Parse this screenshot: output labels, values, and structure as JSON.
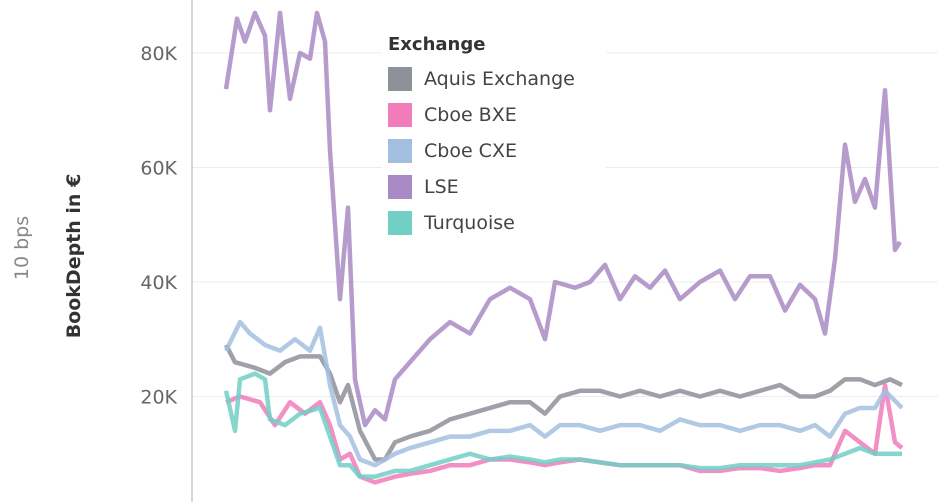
{
  "chart_data": {
    "type": "line",
    "title": "",
    "outer_label": "10 bps",
    "ylabel": "BookDepth in €",
    "xlabel": "",
    "ylim": [
      0,
      88
    ],
    "xlim": [
      0,
      67.6
    ],
    "y_unit": "thousands of €",
    "y_ticks": [
      {
        "value": 20,
        "label": "20K"
      },
      {
        "value": 40,
        "label": "40K"
      },
      {
        "value": 60,
        "label": "60K"
      },
      {
        "value": 80,
        "label": "80K"
      }
    ],
    "grid": true,
    "legend": {
      "title": "Exchange",
      "placement": "top-center"
    },
    "series": [
      {
        "name": "Aquis Exchange",
        "color": "#8f9199",
        "x": [
          0,
          0.9,
          2.9,
          4.4,
          5.9,
          7.4,
          9.4,
          10.4,
          11.4,
          12.2,
          13.4,
          14.9,
          15.9,
          16.9,
          18.4,
          20.4,
          22.4,
          24.4,
          26.4,
          28.4,
          30.4,
          31.9,
          33.4,
          35.4,
          37.4,
          39.4,
          41.4,
          43.4,
          45.4,
          47.4,
          49.4,
          51.4,
          53.4,
          55.4,
          57.4,
          58.9,
          60.4,
          61.9,
          63.4,
          64.9,
          66.4,
          67.6
        ],
        "y": [
          29,
          26,
          25,
          24,
          26,
          27,
          27,
          24,
          19,
          22,
          14,
          9,
          9,
          12,
          13,
          14,
          16,
          17,
          18,
          19,
          19,
          17,
          20,
          21,
          21,
          20,
          21,
          20,
          21,
          20,
          21,
          20,
          21,
          22,
          20,
          20,
          21,
          23,
          23,
          22,
          23,
          22
        ]
      },
      {
        "name": "Cboe BXE",
        "color": "#f07cbc",
        "x": [
          0,
          1.4,
          3.4,
          4.9,
          6.4,
          7.9,
          9.4,
          10.4,
          11.4,
          12.4,
          13.4,
          14.9,
          16.9,
          18.4,
          20.4,
          22.4,
          24.4,
          26.4,
          28.4,
          30.4,
          31.9,
          33.4,
          35.4,
          37.4,
          39.4,
          41.4,
          43.4,
          45.4,
          47.4,
          49.4,
          51.4,
          53.4,
          55.4,
          57.4,
          58.9,
          60.4,
          61.9,
          63.4,
          64.9,
          65.9,
          66.9,
          67.6
        ],
        "y": [
          19,
          20,
          19,
          15,
          19,
          17,
          19,
          15,
          9,
          10,
          6,
          5,
          6,
          6.5,
          7,
          8,
          8,
          9,
          9,
          8.5,
          8,
          8.5,
          9,
          8.5,
          8,
          8,
          8,
          8,
          7,
          7,
          7.5,
          7.5,
          7,
          7.5,
          8,
          8,
          14,
          12,
          10,
          22,
          12,
          11
        ]
      },
      {
        "name": "Cboe CXE",
        "color": "#a3bfe0",
        "x": [
          0,
          1.4,
          2.4,
          3.9,
          5.4,
          6.9,
          8.4,
          9.4,
          10.4,
          11.4,
          12.4,
          13.4,
          14.9,
          16.9,
          18.4,
          20.4,
          22.4,
          24.4,
          26.4,
          28.4,
          30.4,
          31.9,
          33.4,
          35.4,
          37.4,
          39.4,
          41.4,
          43.4,
          45.4,
          47.4,
          49.4,
          51.4,
          53.4,
          55.4,
          57.4,
          58.9,
          60.4,
          61.9,
          63.4,
          64.9,
          65.9,
          67.6
        ],
        "y": [
          28,
          33,
          31,
          29,
          28,
          30,
          28,
          32,
          22,
          15,
          13,
          9,
          8,
          10,
          11,
          12,
          13,
          13,
          14,
          14,
          15,
          13,
          15,
          15,
          14,
          15,
          15,
          14,
          16,
          15,
          15,
          14,
          15,
          15,
          14,
          15,
          13,
          17,
          18,
          18,
          21,
          18
        ]
      },
      {
        "name": "LSE",
        "color": "#a98bc4",
        "x": [
          0,
          1.1,
          1.9,
          2.9,
          3.9,
          4.4,
          5.4,
          6.4,
          7.4,
          8.4,
          9.1,
          9.9,
          10.4,
          11.4,
          12.2,
          12.9,
          13.9,
          14.9,
          15.9,
          16.9,
          18.4,
          20.4,
          22.4,
          24.4,
          26.4,
          28.4,
          30.4,
          31.9,
          32.9,
          34.9,
          36.4,
          37.9,
          39.4,
          40.9,
          42.4,
          43.9,
          45.4,
          47.4,
          49.4,
          50.9,
          52.4,
          54.4,
          55.9,
          57.4,
          58.9,
          59.9,
          60.9,
          61.9,
          62.9,
          63.9,
          64.9,
          65.9,
          66.9,
          67.4
        ],
        "y": [
          73.7,
          86,
          82,
          87,
          83,
          70,
          87,
          72,
          80,
          79,
          87,
          82,
          63,
          37,
          53,
          23,
          15,
          17.6,
          16,
          23,
          26,
          30,
          33,
          31,
          37,
          39,
          37,
          30,
          40,
          39,
          40,
          43,
          37,
          41,
          39,
          42,
          37,
          40,
          42,
          37,
          41,
          41,
          35,
          39.5,
          37,
          31,
          44,
          64,
          54,
          58,
          53,
          73.5,
          45.6,
          47
        ]
      },
      {
        "name": "Turquoise",
        "color": "#72cfc5",
        "x": [
          0,
          0.9,
          1.4,
          2.9,
          3.9,
          4.4,
          5.9,
          7.4,
          9.4,
          10.4,
          11.4,
          12.4,
          13.4,
          14.9,
          16.9,
          18.4,
          20.4,
          22.4,
          24.4,
          26.4,
          28.4,
          30.4,
          31.9,
          33.4,
          35.4,
          37.4,
          39.4,
          41.4,
          43.4,
          45.4,
          47.4,
          49.4,
          51.4,
          53.4,
          55.4,
          57.4,
          58.9,
          60.4,
          61.9,
          63.4,
          64.9,
          66.4,
          67.6
        ],
        "y": [
          21,
          14,
          23,
          24,
          23,
          16,
          15,
          17,
          18,
          13,
          8,
          8,
          6,
          6,
          7,
          7,
          8,
          9,
          10,
          9,
          9.5,
          9,
          8.5,
          9,
          9,
          8.5,
          8,
          8,
          8,
          8,
          7.5,
          7.5,
          8,
          8,
          8,
          8,
          8.5,
          9,
          10,
          11,
          10,
          10,
          10
        ]
      }
    ]
  }
}
